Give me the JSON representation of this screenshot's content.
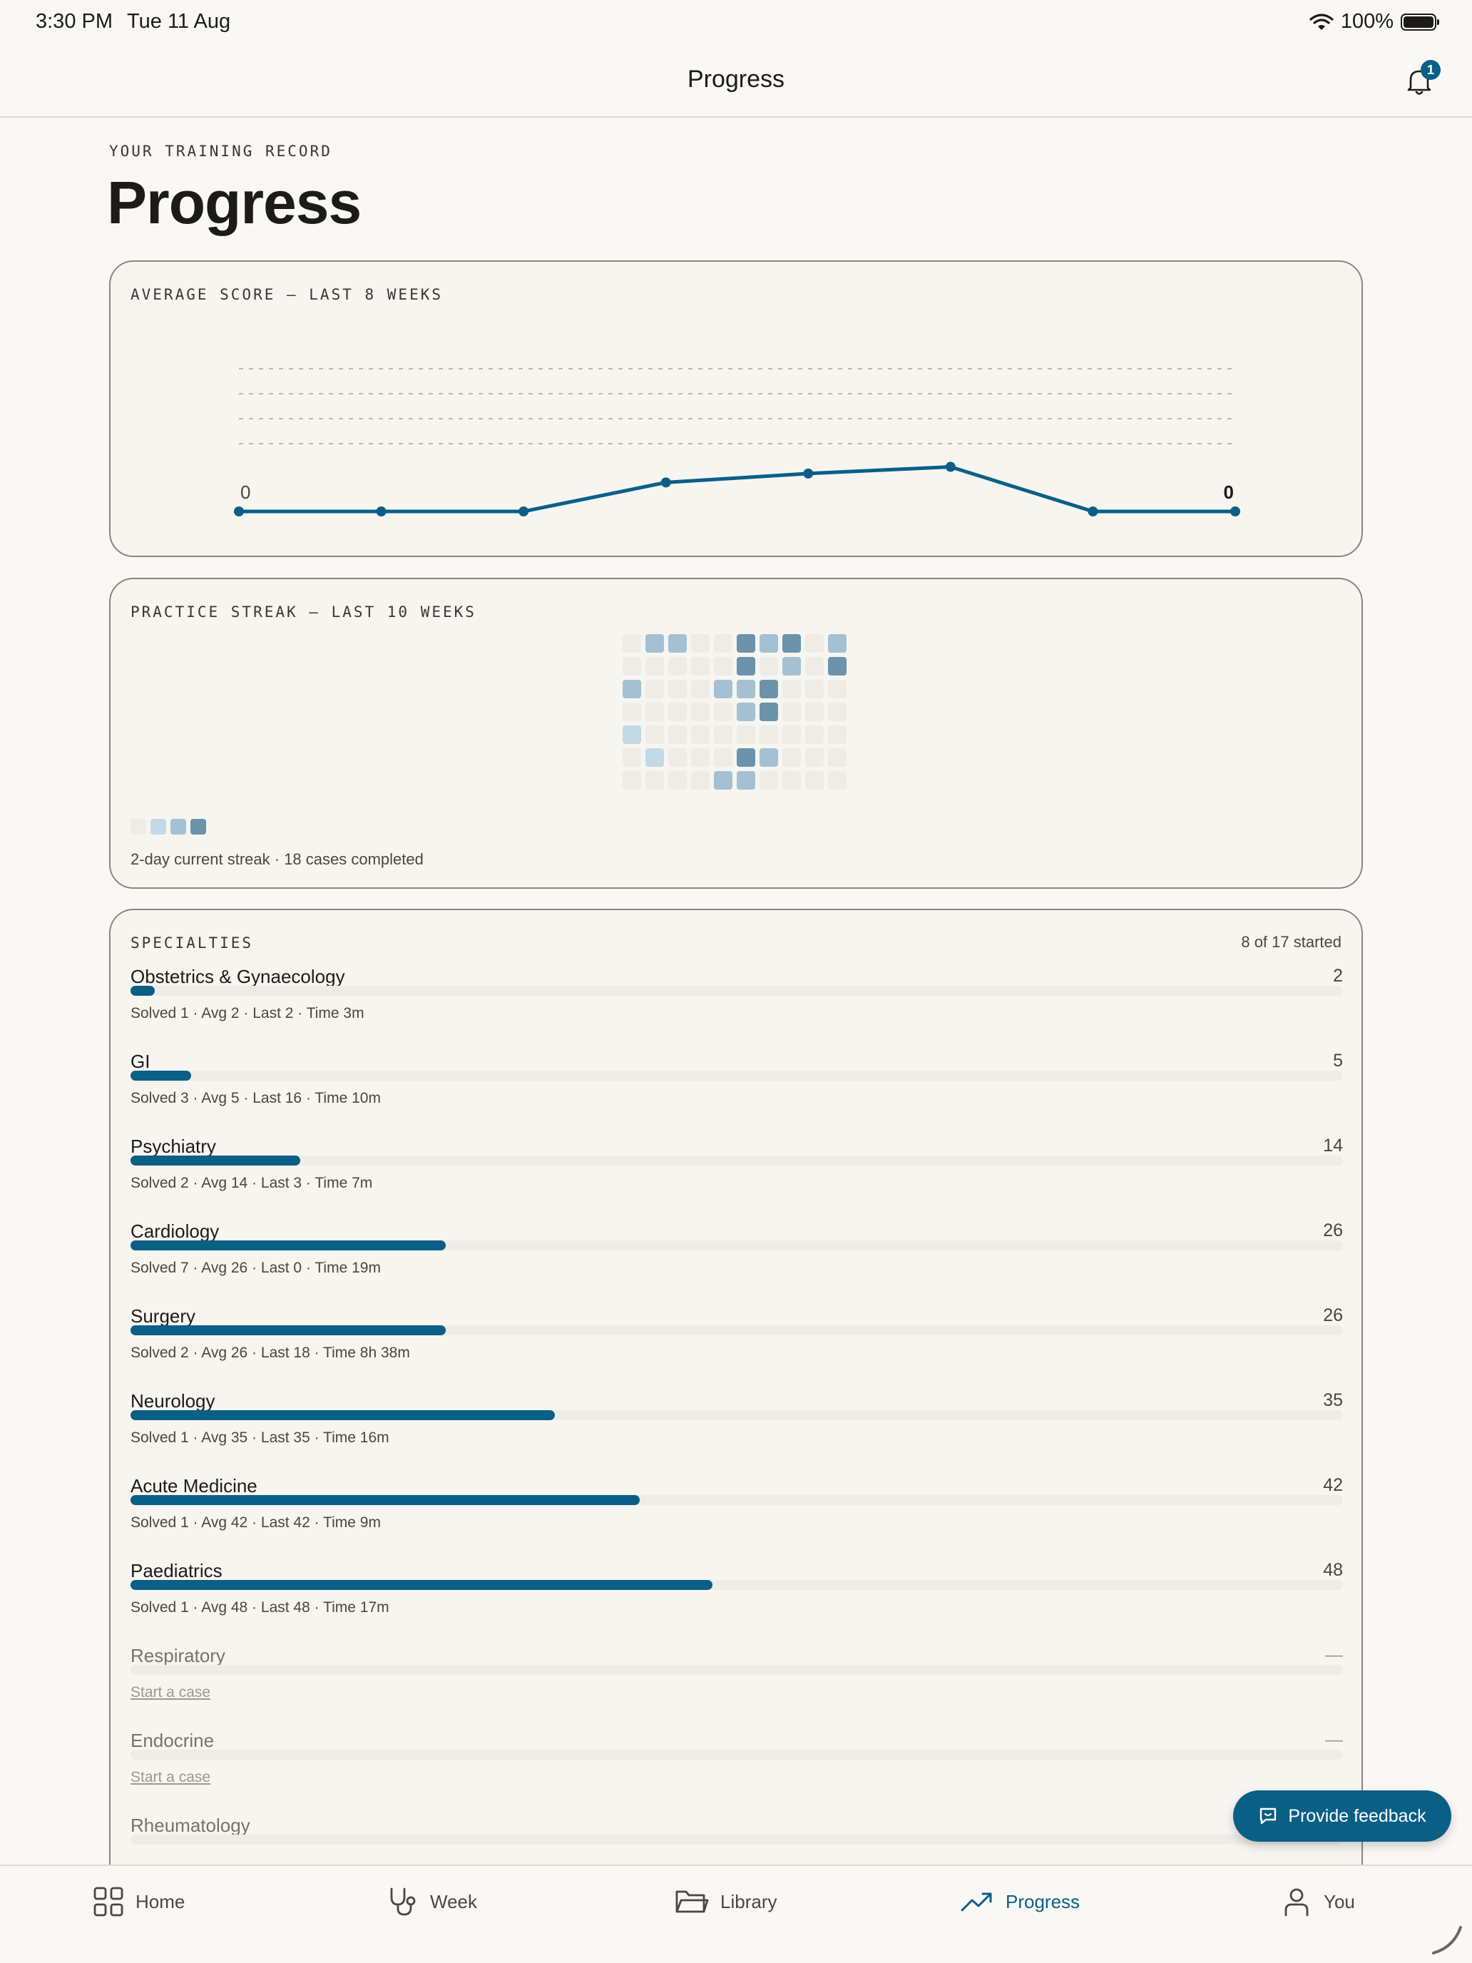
{
  "status_bar": {
    "time": "3:30 PM",
    "date": "Tue 11 Aug",
    "battery": "100%"
  },
  "nav": {
    "title": "Progress",
    "notification_count": "1"
  },
  "header": {
    "kicker": "YOUR TRAINING RECORD",
    "title": "Progress"
  },
  "score_card": {
    "label": "AVERAGE SCORE — LAST 8 WEEKS",
    "chart_data": {
      "type": "line",
      "series": [
        {
          "values": [
            0,
            0,
            0,
            13,
            17,
            20,
            0,
            0
          ]
        }
      ],
      "ylim": [
        0,
        64
      ],
      "grid": "dashed",
      "start_label": "0",
      "end_label": "0",
      "color": "#0a5f86"
    }
  },
  "streak_card": {
    "label": "PRACTICE STREAK — LAST 10 WEEKS",
    "levels": [
      [
        0,
        2,
        2,
        0,
        0,
        3,
        2,
        3,
        0,
        2
      ],
      [
        0,
        0,
        0,
        0,
        0,
        3,
        0,
        2,
        0,
        3
      ],
      [
        2,
        0,
        0,
        0,
        2,
        2,
        3,
        0,
        0,
        0
      ],
      [
        0,
        0,
        0,
        0,
        0,
        2,
        3,
        0,
        0,
        0
      ],
      [
        1,
        0,
        0,
        0,
        0,
        0,
        0,
        0,
        0,
        0
      ],
      [
        0,
        1,
        0,
        0,
        0,
        3,
        2,
        0,
        0,
        0
      ],
      [
        0,
        0,
        0,
        0,
        2,
        2,
        0,
        0,
        0,
        0
      ]
    ],
    "level_colors": [
      "#efece6",
      "#c2d9e6",
      "#a3c1d3",
      "#6b93ab"
    ],
    "summary": "2-day current streak · 18 cases completed"
  },
  "specialties": {
    "label": "SPECIALTIES",
    "started": "8 of 17 started",
    "items": [
      {
        "name": "Obstetrics & Gynaecology",
        "score": "2",
        "progress": 2,
        "meta": "Solved 1 · Avg 2 · Last 2 · Time 3m"
      },
      {
        "name": "GI",
        "score": "5",
        "progress": 5,
        "meta": "Solved 3 · Avg 5 · Last 16 · Time 10m"
      },
      {
        "name": "Psychiatry",
        "score": "14",
        "progress": 14,
        "meta": "Solved 2 · Avg 14 · Last 3 · Time 7m"
      },
      {
        "name": "Cardiology",
        "score": "26",
        "progress": 26,
        "meta": "Solved 7 · Avg 26 · Last 0 · Time 19m"
      },
      {
        "name": "Surgery",
        "score": "26",
        "progress": 26,
        "meta": "Solved 2 · Avg 26 · Last 18 · Time 8h 38m"
      },
      {
        "name": "Neurology",
        "score": "35",
        "progress": 35,
        "meta": "Solved 1 · Avg 35 · Last 35 · Time 16m"
      },
      {
        "name": "Acute Medicine",
        "score": "42",
        "progress": 42,
        "meta": "Solved 1 · Avg 42 · Last 42 · Time 9m"
      },
      {
        "name": "Paediatrics",
        "score": "48",
        "progress": 48,
        "meta": "Solved 1 · Avg 48 · Last 48 · Time 17m"
      },
      {
        "name": "Respiratory",
        "score": "—",
        "progress": 0,
        "meta": "Start a case",
        "empty": true
      },
      {
        "name": "Endocrine",
        "score": "—",
        "progress": 0,
        "meta": "Start a case",
        "empty": true
      },
      {
        "name": "Rheumatology",
        "score": "",
        "progress": 0,
        "meta": "",
        "empty": true
      }
    ]
  },
  "feedback_button": {
    "label": "Provide feedback"
  },
  "tabs": [
    {
      "id": "home",
      "label": "Home",
      "icon": "grid-icon"
    },
    {
      "id": "week",
      "label": "Week",
      "icon": "stethoscope-icon"
    },
    {
      "id": "library",
      "label": "Library",
      "icon": "folder-icon"
    },
    {
      "id": "progress",
      "label": "Progress",
      "icon": "trending-up-icon",
      "active": true
    },
    {
      "id": "you",
      "label": "You",
      "icon": "person-icon"
    }
  ]
}
